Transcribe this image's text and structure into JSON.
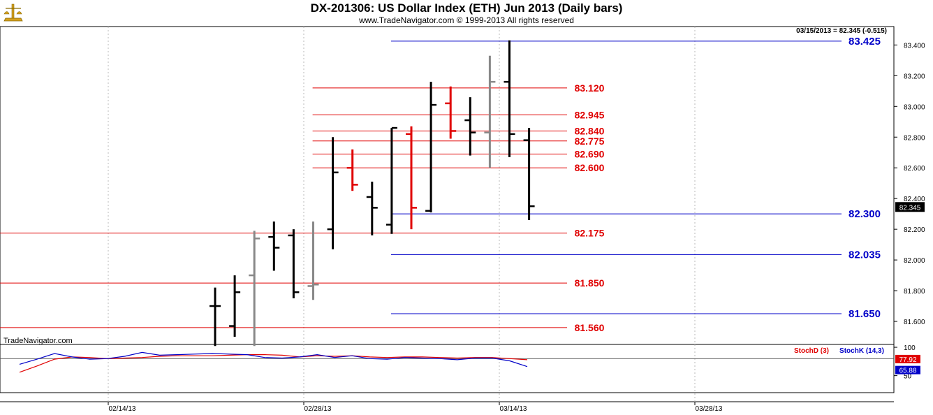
{
  "header": {
    "title": "DX-201306:  US Dollar Index (ETH) Jun 2013  (Daily bars)",
    "subtitle": "www.TradeNavigator.com © 1999-2013 All rights reserved",
    "info": "03/15/2013 = 82.345 (-0.515)",
    "brand": "TradeNavigator.com"
  },
  "colors": {
    "up": "#e00000",
    "down": "#000000",
    "neutral": "#888888",
    "red_level": "#e00000",
    "blue_level": "#0000c8",
    "stoch_d": "#e00000",
    "stoch_k": "#0000c8"
  },
  "chart_data": [
    {
      "type": "ohlc",
      "title": "DX-201306:  US Dollar Index (ETH) Jun 2013  (Daily bars)",
      "x_ticks": [
        "02/14/13",
        "02/28/13",
        "03/14/13",
        "03/28/13"
      ],
      "y_ticks": [
        "81.600",
        "81.800",
        "82.000",
        "82.200",
        "82.400",
        "82.600",
        "82.800",
        "83.000",
        "83.200",
        "83.400"
      ],
      "ylim": [
        81.45,
        83.52
      ],
      "last_price": "82.345",
      "bars": [
        {
          "open": 81.7,
          "high": 81.82,
          "low": 81.44,
          "close": 81.7,
          "color": "down"
        },
        {
          "open": 81.57,
          "high": 81.9,
          "low": 81.5,
          "close": 81.79,
          "color": "down"
        },
        {
          "open": 81.9,
          "high": 82.19,
          "low": 81.44,
          "close": 82.14,
          "color": "neutral"
        },
        {
          "open": 82.15,
          "high": 82.25,
          "low": 81.93,
          "close": 82.08,
          "color": "down"
        },
        {
          "open": 82.16,
          "high": 82.2,
          "low": 81.75,
          "close": 81.79,
          "color": "down"
        },
        {
          "open": 81.83,
          "high": 82.25,
          "low": 81.74,
          "close": 81.84,
          "color": "neutral"
        },
        {
          "open": 82.2,
          "high": 82.8,
          "low": 82.07,
          "close": 82.57,
          "color": "down"
        },
        {
          "open": 82.6,
          "high": 82.72,
          "low": 82.45,
          "close": 82.49,
          "color": "up"
        },
        {
          "open": 82.41,
          "high": 82.51,
          "low": 82.16,
          "close": 82.34,
          "color": "down"
        },
        {
          "open": 82.23,
          "high": 82.86,
          "low": 82.17,
          "close": 82.86,
          "color": "down"
        },
        {
          "open": 82.82,
          "high": 82.87,
          "low": 82.2,
          "close": 82.34,
          "color": "up"
        },
        {
          "open": 82.32,
          "high": 83.16,
          "low": 82.31,
          "close": 83.01,
          "color": "down"
        },
        {
          "open": 83.02,
          "high": 83.13,
          "low": 82.79,
          "close": 82.84,
          "color": "up"
        },
        {
          "open": 82.91,
          "high": 83.06,
          "low": 82.68,
          "close": 82.83,
          "color": "down"
        },
        {
          "open": 82.83,
          "high": 83.33,
          "low": 82.6,
          "close": 83.16,
          "color": "neutral"
        },
        {
          "open": 83.16,
          "high": 83.43,
          "low": 82.67,
          "close": 82.82,
          "color": "down"
        },
        {
          "open": 82.78,
          "high": 82.86,
          "low": 82.26,
          "close": 82.35,
          "color": "down"
        }
      ],
      "levels": [
        {
          "label": "83.425",
          "value": 83.425,
          "color": "blue"
        },
        {
          "label": "83.120",
          "value": 83.12,
          "color": "red"
        },
        {
          "label": "82.945",
          "value": 82.945,
          "color": "red"
        },
        {
          "label": "82.840",
          "value": 82.84,
          "color": "red"
        },
        {
          "label": "82.775",
          "value": 82.775,
          "color": "red"
        },
        {
          "label": "82.690",
          "value": 82.69,
          "color": "red"
        },
        {
          "label": "82.600",
          "value": 82.6,
          "color": "red"
        },
        {
          "label": "82.300",
          "value": 82.3,
          "color": "blue"
        },
        {
          "label": "82.175",
          "value": 82.175,
          "color": "red"
        },
        {
          "label": "82.035",
          "value": 82.035,
          "color": "blue"
        },
        {
          "label": "81.850",
          "value": 81.85,
          "color": "red"
        },
        {
          "label": "81.650",
          "value": 81.65,
          "color": "blue"
        },
        {
          "label": "81.560",
          "value": 81.56,
          "color": "red"
        }
      ]
    },
    {
      "type": "line",
      "y_ticks": [
        "100",
        "50"
      ],
      "ylim": [
        20,
        105
      ],
      "series": [
        {
          "name": "StochD (3)",
          "last_label": "77.92",
          "color": "stoch_d",
          "values": [
            56,
            67,
            79,
            83,
            82,
            80,
            81,
            82,
            84,
            85,
            85,
            85,
            86,
            87,
            87,
            86,
            83,
            85,
            84,
            85,
            83,
            82,
            83,
            83,
            82,
            81,
            82,
            82,
            80,
            78
          ]
        },
        {
          "name": "StochK (14,3)",
          "last_label": "65.88",
          "color": "stoch_k",
          "values": [
            70,
            79,
            89,
            83,
            79,
            80,
            84,
            91,
            86,
            87,
            88,
            89,
            88,
            87,
            82,
            81,
            83,
            87,
            82,
            85,
            80,
            79,
            82,
            81,
            80,
            78,
            81,
            81,
            76,
            66
          ]
        }
      ]
    }
  ]
}
